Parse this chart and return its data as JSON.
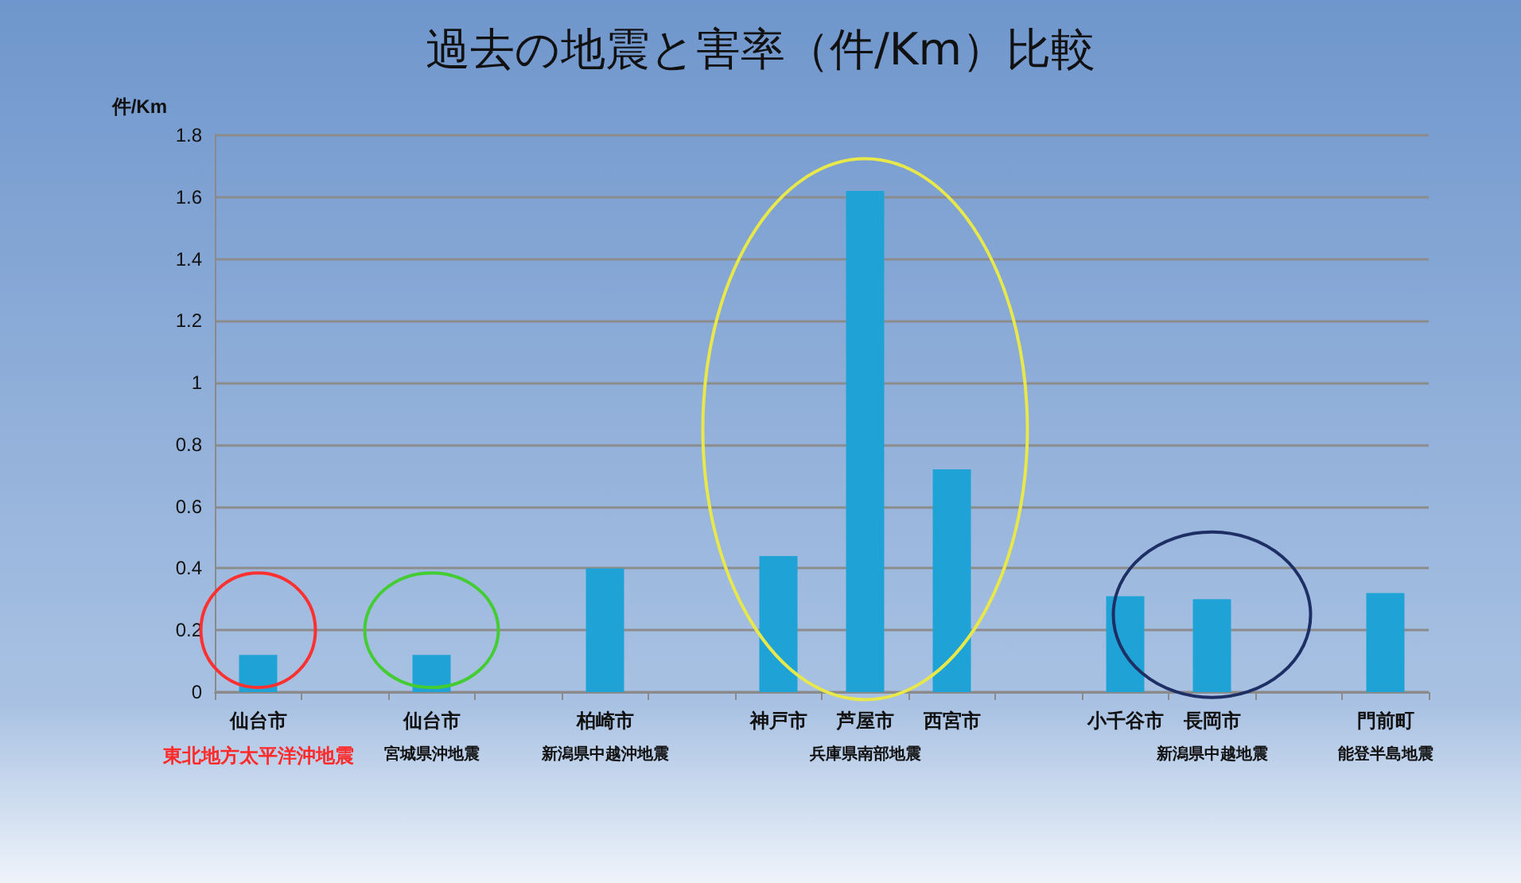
{
  "chart_data": {
    "type": "bar",
    "title": "過去の地震と害率（件/Km）比較",
    "ylabel": "件/Km",
    "categories": [
      "仙台市",
      null,
      "仙台市",
      null,
      "柏崎市",
      null,
      "神戸市",
      "芦屋市",
      "西宮市",
      null,
      "小千谷市",
      "長岡市",
      null,
      "門前町"
    ],
    "series": [
      {
        "color": "#1fa3d6",
        "values": [
          0.12,
          null,
          0.12,
          null,
          0.4,
          null,
          0.44,
          1.62,
          0.72,
          null,
          0.31,
          0.3,
          null,
          0.32
        ]
      }
    ],
    "ylim": [
      0,
      1.8
    ],
    "yticks": [
      0,
      0.2,
      0.4,
      0.6,
      0.8,
      1,
      1.2,
      1.4,
      1.6,
      1.8
    ],
    "grid": "y",
    "annotations": [
      "東北地方太平洋沖地震",
      "宮城県沖地震",
      "新潟県中越沖地震",
      "兵庫県南部地震",
      "新潟県中越地震",
      "能登半島地震"
    ]
  }
}
